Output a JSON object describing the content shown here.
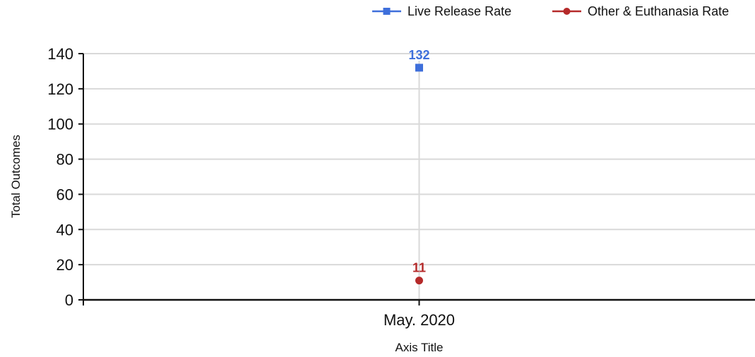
{
  "chart_data": {
    "type": "line",
    "categories": [
      "May. 2020"
    ],
    "series": [
      {
        "name": "Live Release Rate",
        "values": [
          132
        ],
        "color": "#3e6fdb",
        "marker": "square"
      },
      {
        "name": "Other & Euthanasia Rate",
        "values": [
          11
        ],
        "color": "#b52a2a",
        "marker": "circle"
      }
    ],
    "xlabel": "Axis Title",
    "ylabel": "Total Outcomes",
    "ylim": [
      0,
      140
    ],
    "yticks": [
      0,
      20,
      40,
      60,
      80,
      100,
      120,
      140
    ],
    "grid": true,
    "legend_position": "top-right",
    "data_labels": true
  }
}
